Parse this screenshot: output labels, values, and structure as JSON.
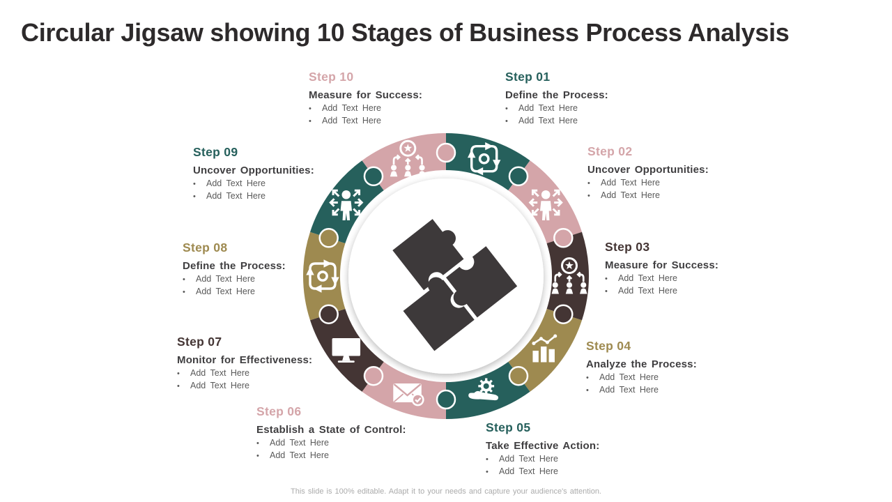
{
  "slide": {
    "title": "Circular Jigsaw showing 10 Stages of Business Process Analysis",
    "footer": "This slide is 100% editable. Adapt it to your needs and capture your audience's attention."
  },
  "colors": {
    "teal": "#26605c",
    "pink": "#d4a5a9",
    "brown": "#443534",
    "gold": "#9e8a50",
    "center_puzzle": "#3d393a",
    "heading_text": "#3f3e40",
    "bullet_text": "#595959",
    "title_text": "#2d2a2b",
    "footer_text": "#ababab"
  },
  "steps": [
    {
      "id": "01",
      "label": "Step 01",
      "color": "teal",
      "heading": "Define the Process:",
      "bullets": [
        "Add Text Here",
        "Add Text Here"
      ]
    },
    {
      "id": "02",
      "label": "Step 02",
      "color": "pink",
      "heading": "Uncover Opportunities:",
      "bullets": [
        "Add Text Here",
        "Add Text Here"
      ]
    },
    {
      "id": "03",
      "label": "Step 03",
      "color": "brown",
      "heading": "Measure for Success:",
      "bullets": [
        "Add Text Here",
        "Add Text Here"
      ]
    },
    {
      "id": "04",
      "label": "Step 04",
      "color": "gold",
      "heading": "Analyze the Process:",
      "bullets": [
        "Add Text Here",
        "Add Text Here"
      ]
    },
    {
      "id": "05",
      "label": "Step 05",
      "color": "teal",
      "heading": "Take Effective Action:",
      "bullets": [
        "Add Text Here",
        "Add Text Here"
      ]
    },
    {
      "id": "06",
      "label": "Step 06",
      "color": "pink",
      "heading": "Establish a State of Control:",
      "bullets": [
        "Add Text Here",
        "Add Text Here"
      ]
    },
    {
      "id": "07",
      "label": "Step 07",
      "color": "brown",
      "heading": "Monitor for Effectiveness:",
      "bullets": [
        "Add Text Here",
        "Add Text Here"
      ]
    },
    {
      "id": "08",
      "label": "Step 08",
      "color": "gold",
      "heading": "Define the Process:",
      "bullets": [
        "Add Text Here",
        "Add Text Here"
      ]
    },
    {
      "id": "09",
      "label": "Step 09",
      "color": "teal",
      "heading": "Uncover Opportunities:",
      "bullets": [
        "Add Text Here",
        "Add Text Here"
      ]
    },
    {
      "id": "10",
      "label": "Step 10",
      "color": "pink",
      "heading": "Measure for Success:",
      "bullets": [
        "Add Text Here",
        "Add Text Here"
      ]
    }
  ],
  "diagram": {
    "segments": [
      {
        "id": "01",
        "color": "teal",
        "icon": "cycle-icon"
      },
      {
        "id": "02",
        "color": "pink",
        "icon": "person-expand-icon"
      },
      {
        "id": "03",
        "color": "brown",
        "icon": "star-hierarchy-icon"
      },
      {
        "id": "04",
        "color": "gold",
        "icon": "bar-chart-icon"
      },
      {
        "id": "05",
        "color": "teal",
        "icon": "hand-gear-icon"
      },
      {
        "id": "06",
        "color": "pink",
        "icon": "envelope-check-icon"
      },
      {
        "id": "07",
        "color": "brown",
        "icon": "monitor-icon"
      },
      {
        "id": "08",
        "color": "gold",
        "icon": "cycle-icon"
      },
      {
        "id": "09",
        "color": "teal",
        "icon": "person-expand-icon"
      },
      {
        "id": "10",
        "color": "pink",
        "icon": "star-hierarchy-icon"
      }
    ],
    "tabs": [
      {
        "angle": 0,
        "color": "pink"
      },
      {
        "angle": 36,
        "color": "teal"
      },
      {
        "angle": 72,
        "color": "pink"
      },
      {
        "angle": 108,
        "color": "brown"
      },
      {
        "angle": 144,
        "color": "gold"
      },
      {
        "angle": 180,
        "color": "teal"
      },
      {
        "angle": 216,
        "color": "pink"
      },
      {
        "angle": 252,
        "color": "brown"
      },
      {
        "angle": 288,
        "color": "gold"
      },
      {
        "angle": 324,
        "color": "teal"
      }
    ]
  }
}
